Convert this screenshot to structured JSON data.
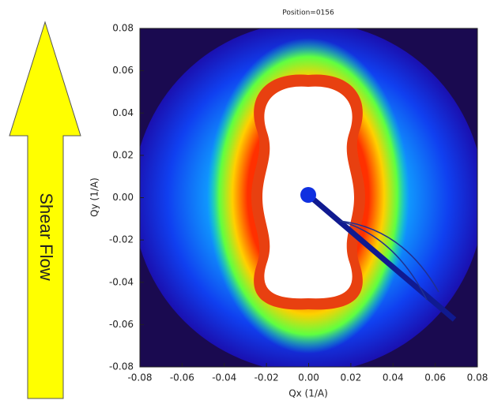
{
  "chart_data": {
    "type": "image",
    "title": "Position=0156",
    "x_label": "Qx (1/A)",
    "y_label": "Qy (1/A)",
    "annotation": "Shear Flow",
    "xlim": [
      -0.08,
      0.08
    ],
    "ylim": [
      -0.08,
      0.08
    ],
    "xticks": [
      -0.08,
      -0.06,
      -0.04,
      -0.02,
      {
        "value": 0,
        "label": "0.00"
      },
      0.02,
      0.04,
      0.06,
      0.08
    ],
    "yticks": [
      -0.08,
      -0.06,
      -0.04,
      -0.02,
      {
        "value": 0,
        "label": "0.00"
      },
      0.02,
      0.04,
      0.06,
      0.08
    ]
  }
}
